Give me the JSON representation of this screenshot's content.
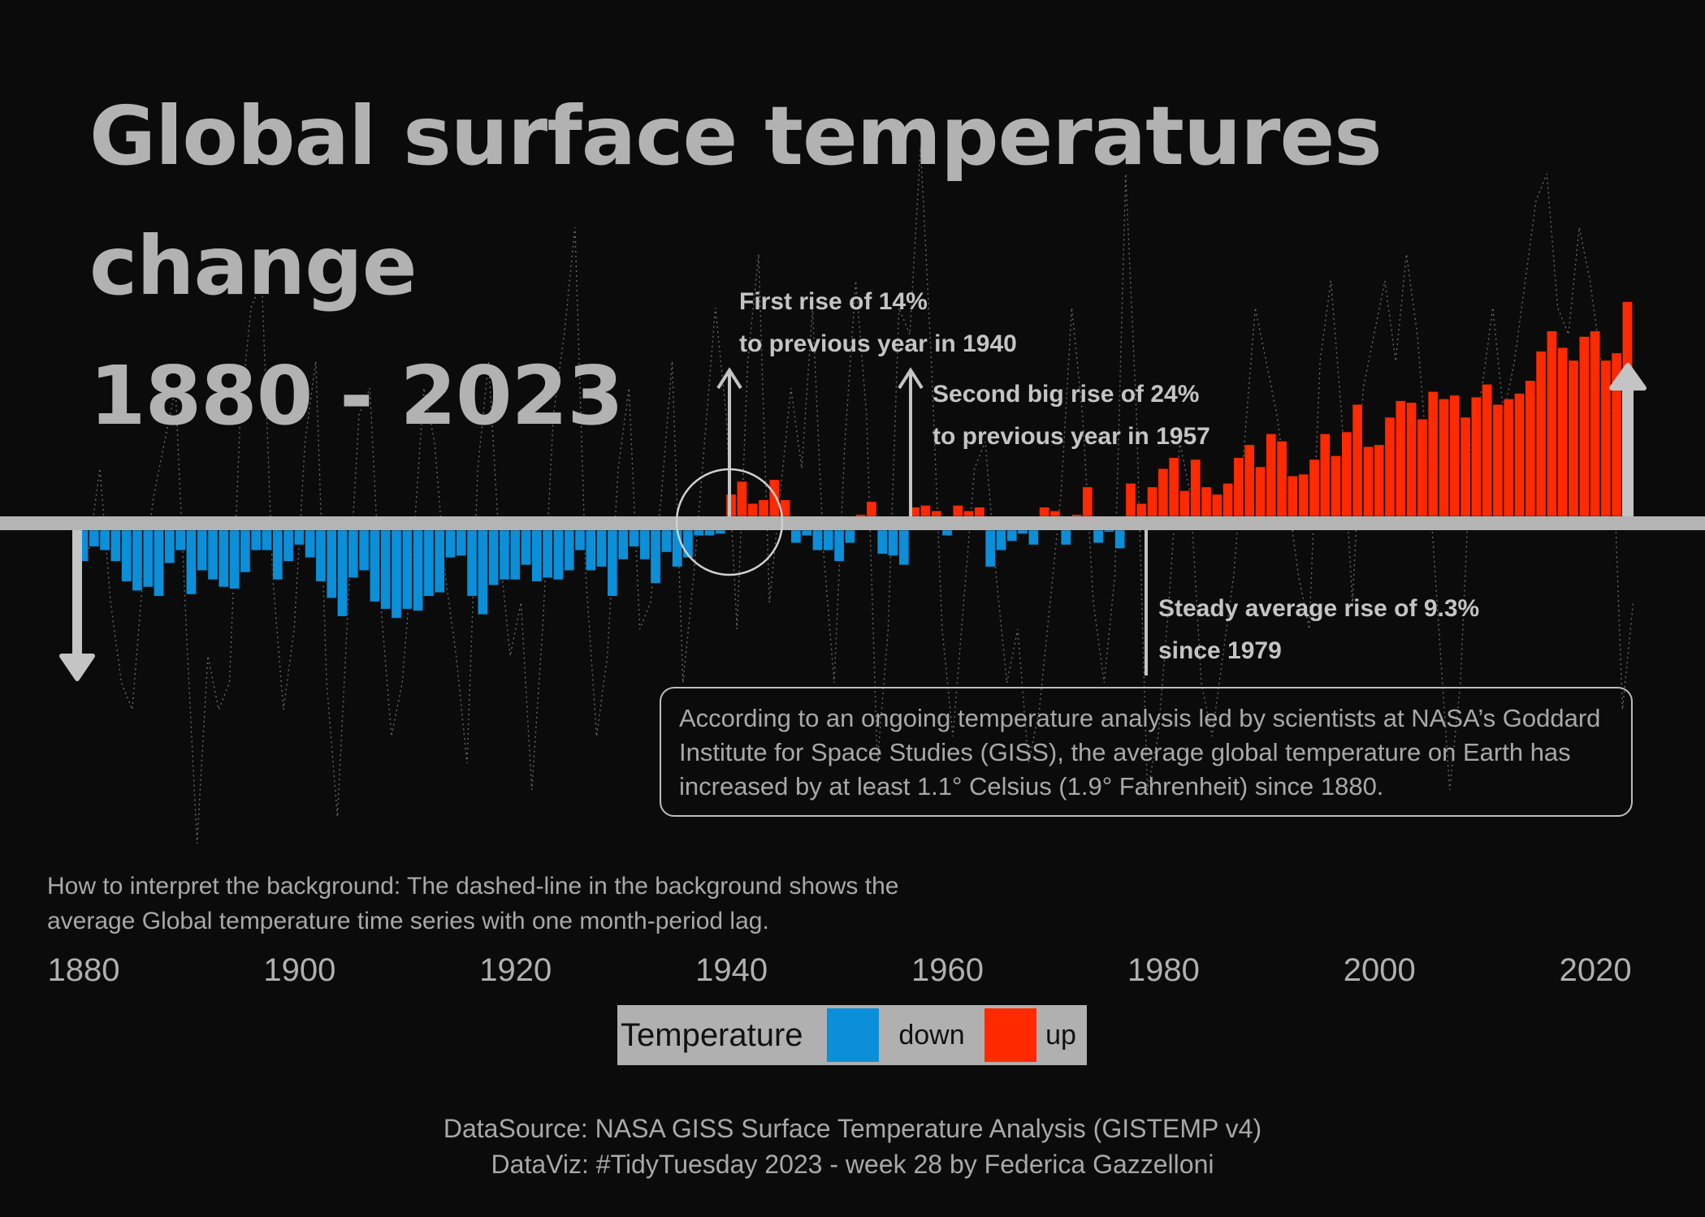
{
  "title_line1": "Global surface temperatures change",
  "title_line2": "1880 - 2023",
  "annotations": {
    "first_rise": "First rise of 14%\nto previous year in 1940",
    "second_rise": "Second big rise of 24%\nto previous year in 1957",
    "steady_rise": "Steady average rise of 9.3%\nsince 1979"
  },
  "info_box": "According to an ongoing temperature analysis led by scientists at NASA’s Goddard Institute for Space Studies (GISS), the average global temperature on Earth has increased by at least 1.1° Celsius (1.9° Fahrenheit) since 1880.",
  "interpretation": "How to interpret the background: The dashed-line in the background shows the average Global temperature time series with one month-period lag.",
  "legend": {
    "title": "Temperature",
    "down_label": "down",
    "up_label": "up",
    "down_color": "#0b8fd8",
    "up_color": "#ff2a00"
  },
  "footer": {
    "source": "DataSource: NASA GISS Surface Temperature Analysis (GISTEMP v4)",
    "credit": "DataViz: #TidyTuesday 2023 - week 28 by Federica Gazzelloni"
  },
  "chart_data": {
    "type": "bar",
    "x_ticks": [
      "1880",
      "1900",
      "1920",
      "1940",
      "1960",
      "1980",
      "2000",
      "2020"
    ],
    "xlim": [
      1880,
      2023
    ],
    "ylim": [
      -0.6,
      1.3
    ],
    "colors": {
      "down": "#0b8fd8",
      "up": "#ff2a00",
      "baseline": "#b4b4b4",
      "background_line": "#6a6a6a"
    },
    "years": [
      1880,
      1881,
      1882,
      1883,
      1884,
      1885,
      1886,
      1887,
      1888,
      1889,
      1890,
      1891,
      1892,
      1893,
      1894,
      1895,
      1896,
      1897,
      1898,
      1899,
      1900,
      1901,
      1902,
      1903,
      1904,
      1905,
      1906,
      1907,
      1908,
      1909,
      1910,
      1911,
      1912,
      1913,
      1914,
      1915,
      1916,
      1917,
      1918,
      1919,
      1920,
      1921,
      1922,
      1923,
      1924,
      1925,
      1926,
      1927,
      1928,
      1929,
      1930,
      1931,
      1932,
      1933,
      1934,
      1935,
      1936,
      1937,
      1938,
      1939,
      1940,
      1941,
      1942,
      1943,
      1944,
      1945,
      1946,
      1947,
      1948,
      1949,
      1950,
      1951,
      1952,
      1953,
      1954,
      1955,
      1956,
      1957,
      1958,
      1959,
      1960,
      1961,
      1962,
      1963,
      1964,
      1965,
      1966,
      1967,
      1968,
      1969,
      1970,
      1971,
      1972,
      1973,
      1974,
      1975,
      1976,
      1977,
      1978,
      1979,
      1980,
      1981,
      1982,
      1983,
      1984,
      1985,
      1986,
      1987,
      1988,
      1989,
      1990,
      1991,
      1992,
      1993,
      1994,
      1995,
      1996,
      1997,
      1998,
      1999,
      2000,
      2001,
      2002,
      2003,
      2004,
      2005,
      2006,
      2007,
      2008,
      2009,
      2010,
      2011,
      2012,
      2013,
      2014,
      2015,
      2016,
      2017,
      2018,
      2019,
      2020,
      2021,
      2022,
      2023
    ],
    "anomalies": [
      -0.17,
      -0.09,
      -0.11,
      -0.17,
      -0.28,
      -0.33,
      -0.31,
      -0.36,
      -0.18,
      -0.11,
      -0.35,
      -0.22,
      -0.27,
      -0.31,
      -0.32,
      -0.23,
      -0.11,
      -0.11,
      -0.27,
      -0.17,
      -0.08,
      -0.15,
      -0.28,
      -0.37,
      -0.47,
      -0.26,
      -0.22,
      -0.39,
      -0.43,
      -0.48,
      -0.43,
      -0.44,
      -0.36,
      -0.34,
      -0.15,
      -0.14,
      -0.36,
      -0.46,
      -0.3,
      -0.27,
      -0.27,
      -0.19,
      -0.28,
      -0.26,
      -0.27,
      -0.22,
      -0.11,
      -0.22,
      -0.2,
      -0.36,
      -0.16,
      -0.09,
      -0.16,
      -0.29,
      -0.12,
      -0.2,
      -0.15,
      -0.03,
      -0.03,
      -0.02,
      0.12,
      0.19,
      0.07,
      0.09,
      0.2,
      0.09,
      -0.07,
      -0.03,
      -0.11,
      -0.11,
      -0.17,
      -0.07,
      0.01,
      0.08,
      -0.13,
      -0.14,
      -0.19,
      0.05,
      0.06,
      0.03,
      -0.03,
      0.06,
      0.03,
      0.05,
      -0.2,
      -0.11,
      -0.06,
      -0.02,
      -0.08,
      0.05,
      0.03,
      -0.08,
      0.01,
      0.16,
      -0.07,
      -0.01,
      -0.1,
      0.18,
      0.07,
      0.16,
      0.26,
      0.32,
      0.14,
      0.31,
      0.16,
      0.12,
      0.18,
      0.32,
      0.39,
      0.27,
      0.45,
      0.41,
      0.22,
      0.23,
      0.31,
      0.45,
      0.33,
      0.46,
      0.61,
      0.38,
      0.39,
      0.54,
      0.63,
      0.62,
      0.53,
      0.68,
      0.64,
      0.66,
      0.54,
      0.65,
      0.72,
      0.61,
      0.64,
      0.67,
      0.74,
      0.9,
      1.01,
      0.92,
      0.85,
      0.98,
      1.01,
      0.85,
      0.89,
      1.17
    ],
    "background_series": [
      -0.1,
      0.2,
      -0.3,
      -0.6,
      -0.7,
      -0.2,
      0.1,
      0.3,
      0.5,
      -0.4,
      -1.2,
      -0.5,
      -0.7,
      -0.6,
      0.4,
      0.8,
      0.9,
      -0.2,
      -0.7,
      -0.4,
      0.3,
      0.6,
      -0.6,
      -1.1,
      -0.3,
      0.4,
      0.5,
      -0.3,
      -0.8,
      -0.6,
      -0.1,
      0.5,
      0.3,
      -0.2,
      -0.5,
      -0.9,
      0.2,
      0.6,
      -0.1,
      -0.5,
      -0.3,
      -1.0,
      -0.4,
      0.4,
      0.7,
      1.1,
      -0.2,
      -0.8,
      -0.5,
      0.2,
      0.5,
      -0.4,
      -0.3,
      0.1,
      0.6,
      -0.6,
      -0.2,
      0.3,
      0.8,
      0.4,
      -0.4,
      0.6,
      1.0,
      -0.3,
      0.1,
      0.5,
      0.2,
      0.8,
      -0.1,
      -0.6,
      0.3,
      0.9,
      0.4,
      -0.9,
      -0.4,
      0.8,
      0.7,
      1.4,
      0.6,
      -0.4,
      -0.8,
      -0.3,
      0.2,
      0.3,
      -0.2,
      -0.6,
      -0.4,
      -0.9,
      -0.7,
      -0.3,
      0.1,
      0.8,
      0.4,
      -0.3,
      -0.6,
      -0.2,
      1.3,
      0.4,
      -1.0,
      -0.8,
      -0.3,
      0.3,
      0.1,
      -0.6,
      -0.8,
      -0.5,
      -0.2,
      0.3,
      0.8,
      0.6,
      0.4,
      0.1,
      -0.2,
      -0.4,
      0.6,
      0.9,
      0.4,
      -0.3,
      0.5,
      0.7,
      0.9,
      0.6,
      1.0,
      0.7,
      0.2,
      -0.4,
      -1.0,
      -0.6,
      0.3,
      0.5,
      0.8,
      0.4,
      0.6,
      0.9,
      1.2,
      1.3,
      0.8,
      0.7,
      1.1,
      0.9,
      0.6,
      0.4,
      -0.7,
      -0.3
    ]
  }
}
